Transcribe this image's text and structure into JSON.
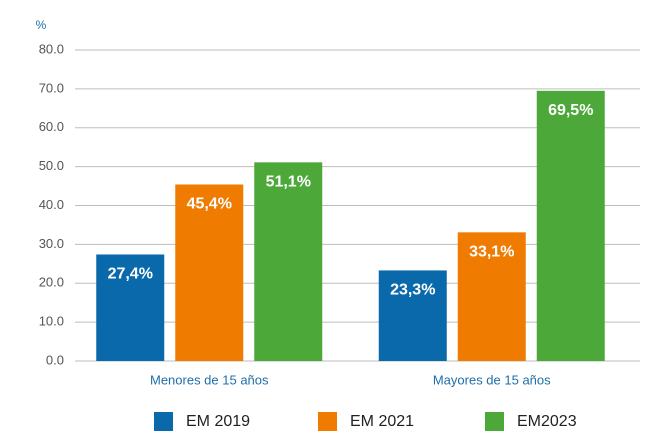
{
  "chart_data": {
    "type": "bar",
    "y_unit": "%",
    "categories": [
      "Menores de 15 años",
      "Mayores de 15 años"
    ],
    "series": [
      {
        "name": "EM 2019",
        "color": "#0a69aa",
        "values": [
          27.4,
          23.3
        ],
        "value_labels": [
          "27,4%",
          "23,3%"
        ]
      },
      {
        "name": "EM 2021",
        "color": "#ef7b00",
        "values": [
          45.4,
          33.1
        ],
        "value_labels": [
          "45,4%",
          "33,1%"
        ]
      },
      {
        "name": "EM2023",
        "color": "#4da83a",
        "values": [
          51.1,
          69.5
        ],
        "value_labels": [
          "51,1%",
          "69,5%"
        ]
      }
    ],
    "ylim": [
      0,
      80
    ],
    "yticks": [
      {
        "value": 0,
        "label": "0.0"
      },
      {
        "value": 10,
        "label": "10.0"
      },
      {
        "value": 20,
        "label": "20.0"
      },
      {
        "value": 30,
        "label": "30.0"
      },
      {
        "value": 40,
        "label": "40.0"
      },
      {
        "value": 50,
        "label": "50.0"
      },
      {
        "value": 60,
        "label": "60.0"
      },
      {
        "value": 70,
        "label": "70.0"
      },
      {
        "value": 80,
        "label": "80.0"
      }
    ],
    "grid": true
  }
}
